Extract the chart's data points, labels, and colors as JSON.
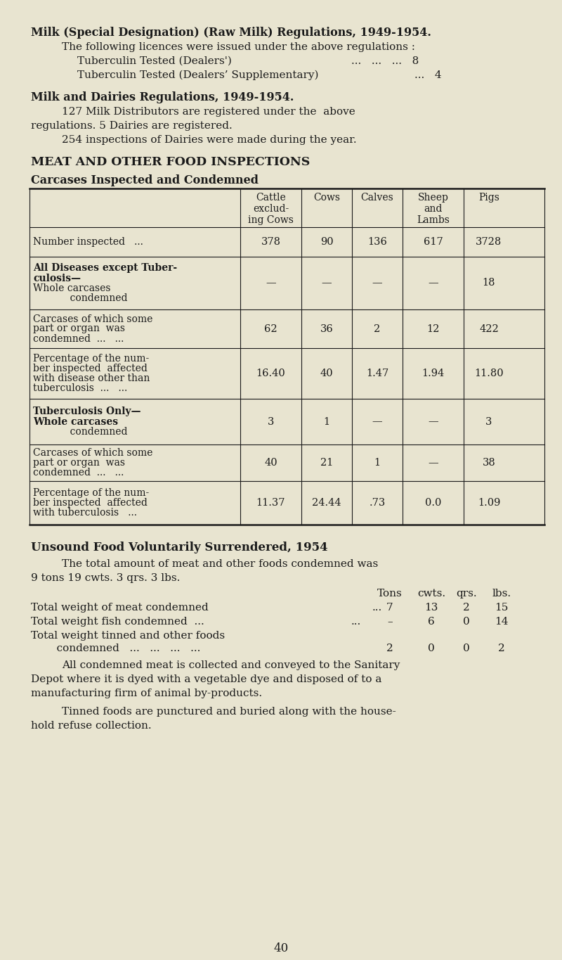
{
  "bg_color": "#e8e4d0",
  "text_color": "#1a1a1a",
  "page_number": "40",
  "title1": "Milk (Special Designation) (Raw Milk) Regulations, 1949-1954.",
  "para1_line1": "The following licences were issued under the above regulations :",
  "para1_line2_a": "Tuberculin Tested (Dealers')",
  "para1_line2_b": "...   ...   ...   8",
  "para1_line3_a": "Tuberculin Tested (Dealers’ Supplementary)",
  "para1_line3_b": "...   4",
  "title2": "Milk and Dairies Regulations, 1949-1954.",
  "para2_line1a": "127 Milk Distributors are registered under the  above",
  "para2_line2": "regulations. 5 Dairies are registered.",
  "para2_line3": "254 inspections of Dairies were made during the year.",
  "section_heading": "MEAT AND OTHER FOOD INSPECTIONS",
  "table_heading": "Carcases Inspected and Condemned",
  "col_headers": [
    "Cattle\nexclud-\ning Cows",
    "Cows",
    "Calves",
    "Sheep\nand\nLambs",
    "Pigs"
  ],
  "table_rows": [
    {
      "label": "Number inspected   ...",
      "bold": false,
      "values": [
        "378",
        "90",
        "136",
        "617",
        "3728"
      ]
    },
    {
      "label": "All Diseases except Tuber-\nculosis—\nWhole carcases\n            condemned",
      "bold": true,
      "values": [
        "—",
        "—",
        "—",
        "—",
        "18"
      ]
    },
    {
      "label": "Carcases of which some\npart or organ  was\ncondemned  ...   ...",
      "bold": false,
      "values": [
        "62",
        "36",
        "2",
        "12",
        "422"
      ]
    },
    {
      "label": "Percentage of the num-\nber inspected  affected\nwith disease other than\ntuberculosis  ...   ...",
      "bold": false,
      "values": [
        "16.40",
        "40",
        "1.47",
        "1.94",
        "11.80"
      ]
    },
    {
      "label": "Tuberculosis Only—\nWhole carcases\n            condemned",
      "bold": true,
      "values": [
        "3",
        "1",
        "—",
        "—",
        "3"
      ]
    },
    {
      "label": "Carcases of which some\npart or organ  was\ncondemned  ...   ...",
      "bold": false,
      "values": [
        "40",
        "21",
        "1",
        "—",
        "38"
      ]
    },
    {
      "label": "Percentage of the num-\nber inspected  affected\nwith tuberculosis   ...",
      "bold": false,
      "values": [
        "11.37",
        "24.44",
        ".73",
        "0.0",
        "1.09"
      ]
    }
  ],
  "unsound_heading": "Unsound Food Voluntarily Surrendered, 1954",
  "unsound_para1": "The total amount of meat and other foods condemned was",
  "unsound_para2": "9 tons 19 cwts. 3 qrs. 3 lbs.",
  "unsound_col_headers": "Tons  cwts. qrs.  lbs.",
  "unsound_row1_label": "Total weight of meat condemned",
  "unsound_row1_vals": [
    "7",
    "13",
    "2",
    "15"
  ],
  "unsound_row2_label": "Total weight fish condemned  ...",
  "unsound_row2_vals": [
    "–",
    "6",
    "0",
    "14"
  ],
  "unsound_row3_label": "Total weight tinned and other foods",
  "unsound_row3_label2": "   condemned   ...   ...   ...   ...",
  "unsound_row3_vals": [
    "2",
    "0",
    "0",
    "2"
  ],
  "final_para1": "All condemned meat is collected and conveyed to the Sanitary",
  "final_para2": "Depot where it is dyed with a vegetable dye and disposed of to a",
  "final_para3": "manufacturing firm of animal by-products.",
  "final_para4": "Tinned foods are punctured and buried along with the house-",
  "final_para5": "hold refuse collection."
}
